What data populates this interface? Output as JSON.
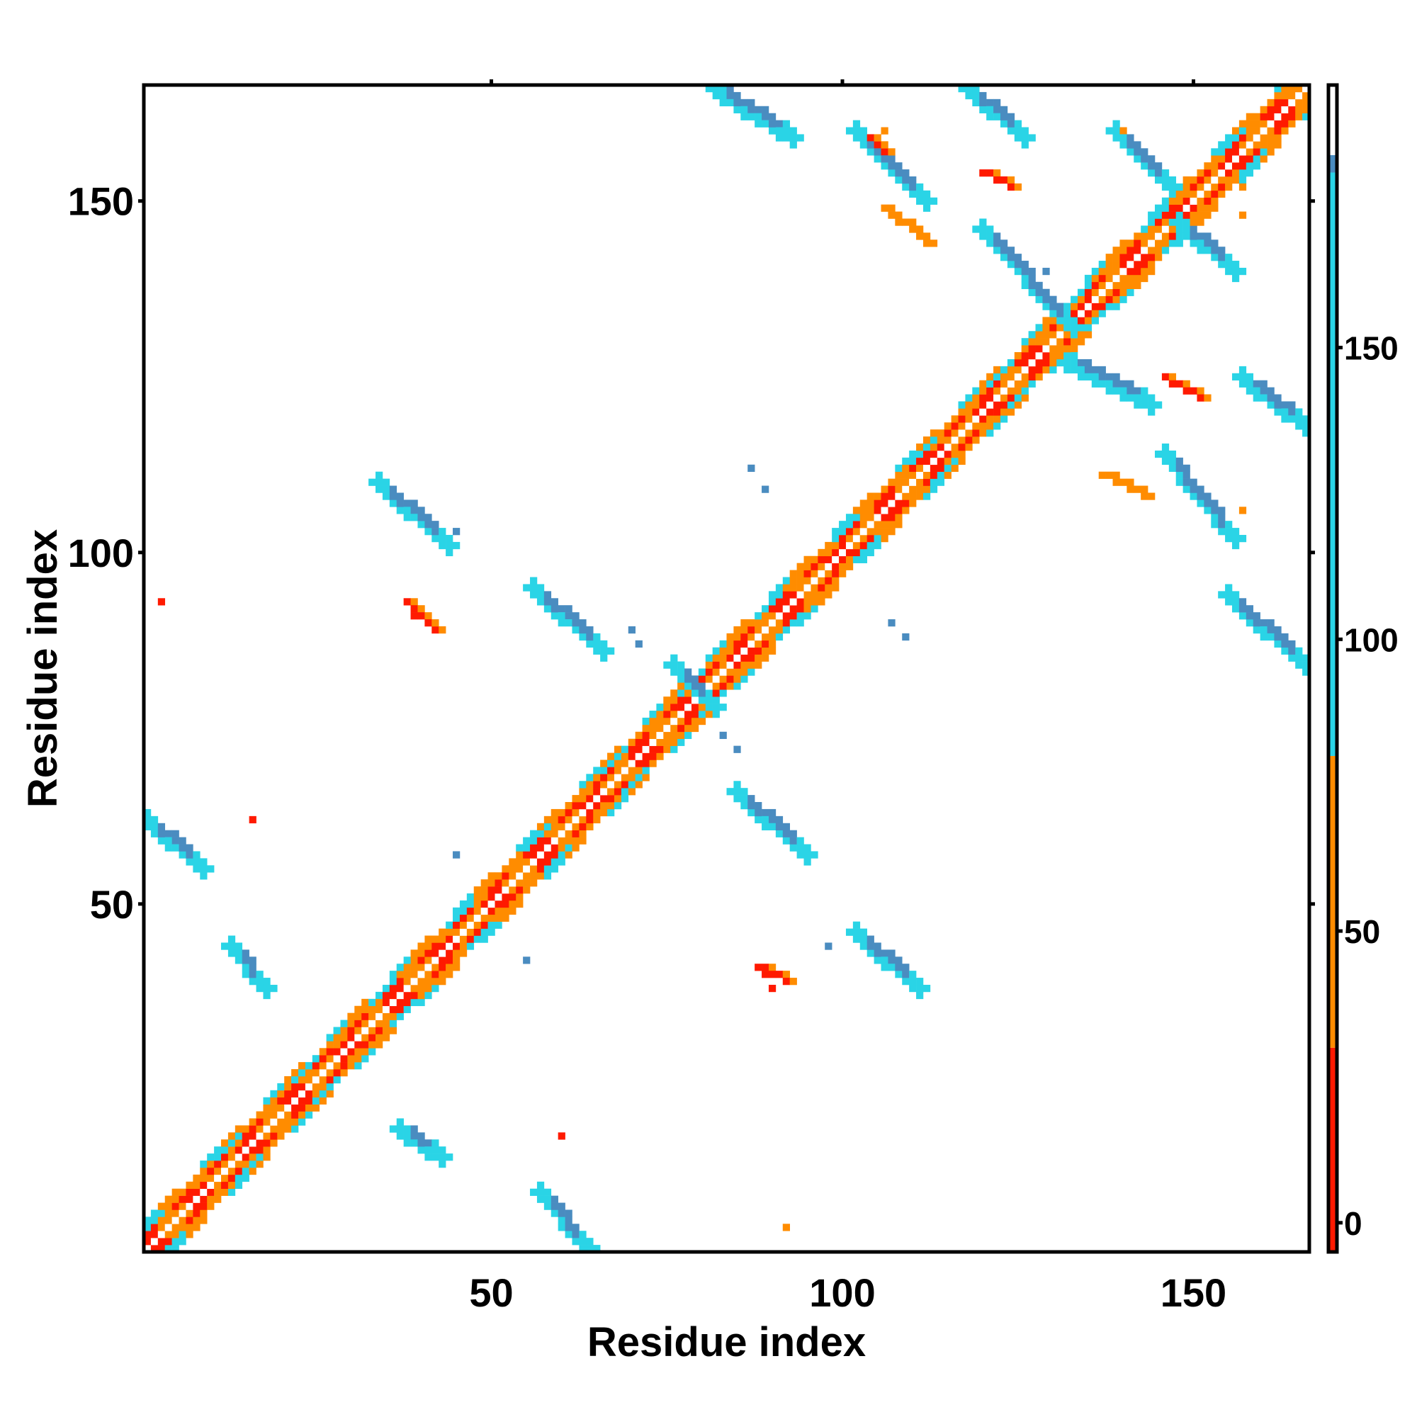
{
  "chart_data": {
    "type": "heatmap",
    "title": "",
    "xlabel": "Residue index",
    "ylabel": "Residue index",
    "xlim": [
      1,
      166
    ],
    "ylim": [
      1,
      166
    ],
    "x_ticks": [
      50,
      100,
      150
    ],
    "y_ticks": [
      50,
      100,
      150
    ],
    "colorbar": {
      "ticks": [
        0,
        50,
        100,
        150
      ],
      "range": [
        -5,
        195
      ],
      "bands": [
        {
          "from": -5,
          "to": 30,
          "color": "#ff1a00"
        },
        {
          "from": 30,
          "to": 80,
          "color": "#ff8c00"
        },
        {
          "from": 80,
          "to": 180,
          "color": "#2ad4e6"
        },
        {
          "from": 180,
          "to": 183,
          "color": "#4a8cc0"
        },
        {
          "from": 183,
          "to": 195,
          "color": "#ffffff"
        }
      ]
    },
    "legend": "right colorbar",
    "grid": false,
    "colors": {
      "red": "#ff1a00",
      "orange_red": "#ff4a00",
      "orange": "#ff8c00",
      "cyan": "#2ad4e6",
      "blue": "#4a8cc0",
      "steel": "#4a8cc0"
    },
    "diagonal": {
      "from": 1,
      "to": 166,
      "value_near": 5,
      "value_mid": 40,
      "value_far": 120
    },
    "features": [
      {
        "kind": "helix-band",
        "x_from": 1,
        "x_to": 166,
        "offset": 0
      },
      {
        "kind": "strand-pair",
        "x": [
          57,
          64
        ],
        "y": [
          9,
          1
        ],
        "value": 150
      },
      {
        "kind": "strand-pair",
        "x": [
          37,
          43
        ],
        "y": [
          18,
          14
        ],
        "value": 150
      },
      {
        "kind": "strand-pair",
        "x": [
          13,
          18
        ],
        "y": [
          44,
          38
        ],
        "value": 150
      },
      {
        "kind": "strand-pair",
        "x": [
          1,
          9
        ],
        "y": [
          62,
          55
        ],
        "value": 150
      },
      {
        "kind": "strand-pair",
        "x": [
          85,
          95
        ],
        "y": [
          66,
          57
        ],
        "value": 150
      },
      {
        "kind": "strand-pair",
        "x": [
          102,
          111
        ],
        "y": [
          46,
          38
        ],
        "value": 150
      },
      {
        "kind": "strand-pair",
        "x": [
          56,
          66
        ],
        "y": [
          95,
          86
        ],
        "value": 150
      },
      {
        "kind": "strand-pair",
        "x": [
          34,
          44
        ],
        "y": [
          110,
          101
        ],
        "value": 150
      },
      {
        "kind": "strand-pair",
        "x": [
          82,
          93
        ],
        "y": [
          166,
          159
        ],
        "value": 150
      },
      {
        "kind": "strand-pair",
        "x": [
          118,
          126
        ],
        "y": [
          166,
          159
        ],
        "value": 150
      },
      {
        "kind": "strand-pair",
        "x": [
          102,
          112
        ],
        "y": [
          160,
          150
        ],
        "value": 150
      },
      {
        "kind": "strand-pair",
        "x": [
          139,
          147
        ],
        "y": [
          160,
          152
        ],
        "value": 150
      },
      {
        "kind": "strand-pair",
        "x": [
          148,
          156
        ],
        "y": [
          147,
          140
        ],
        "value": 150
      },
      {
        "kind": "strand-pair",
        "x": [
          120,
          133
        ],
        "y": [
          146,
          132
        ],
        "value": 150
      },
      {
        "kind": "strand-pair",
        "x": [
          132,
          144
        ],
        "y": [
          127,
          121
        ],
        "value": 150
      },
      {
        "kind": "strand-pair",
        "x": [
          157,
          166
        ],
        "y": [
          125,
          118
        ],
        "value": 150
      },
      {
        "kind": "strand-pair",
        "x": [
          146,
          156
        ],
        "y": [
          114,
          102
        ],
        "value": 150
      },
      {
        "kind": "strand-pair",
        "x": [
          155,
          166
        ],
        "y": [
          94,
          84
        ],
        "value": 150
      },
      {
        "kind": "strand-pair",
        "x": [
          76,
          82
        ],
        "y": [
          84,
          78
        ],
        "value": 150
      },
      {
        "kind": "dots",
        "points": [
          [
            3,
            93,
            20
          ],
          [
            16,
            62,
            10
          ],
          [
            60,
            17,
            10
          ],
          [
            39,
            91,
            10
          ],
          [
            42,
            89,
            30
          ],
          [
            45,
            103,
            150
          ],
          [
            45,
            103,
            150
          ],
          [
            55,
            42,
            150
          ],
          [
            45,
            57,
            150
          ],
          [
            87,
            112,
            150
          ],
          [
            89,
            109,
            150
          ],
          [
            107,
            90,
            150
          ],
          [
            109,
            88,
            150
          ],
          [
            70,
            89,
            150
          ],
          [
            71,
            87,
            150
          ],
          [
            83,
            74,
            150
          ],
          [
            85,
            72,
            150
          ],
          [
            98,
            44,
            150
          ],
          [
            92,
            4,
            40
          ],
          [
            89,
            40,
            10
          ],
          [
            90,
            38,
            20
          ],
          [
            106,
            160,
            40
          ],
          [
            129,
            140,
            150
          ],
          [
            157,
            152,
            40
          ],
          [
            157,
            148,
            40
          ],
          [
            157,
            106,
            40
          ],
          [
            140,
            160,
            40
          ]
        ]
      },
      {
        "kind": "red-patch",
        "x": [
          38,
          42
        ],
        "y": [
          93,
          89
        ],
        "value": 10
      },
      {
        "kind": "red-patch",
        "x": [
          88,
          92
        ],
        "y": [
          41,
          39
        ],
        "value": 10
      },
      {
        "kind": "red-patch",
        "x": [
          120,
          124
        ],
        "y": [
          154,
          152
        ],
        "value": 10
      },
      {
        "kind": "red-patch",
        "x": [
          106,
          112
        ],
        "y": [
          149,
          144
        ],
        "value": 40
      },
      {
        "kind": "red-patch",
        "x": [
          137,
          143
        ],
        "y": [
          111,
          108
        ],
        "value": 40
      },
      {
        "kind": "red-patch",
        "x": [
          146,
          151
        ],
        "y": [
          125,
          122
        ],
        "value": 10
      },
      {
        "kind": "red-patch",
        "x": [
          104,
          106
        ],
        "y": [
          159,
          157
        ],
        "value": 10
      }
    ]
  }
}
